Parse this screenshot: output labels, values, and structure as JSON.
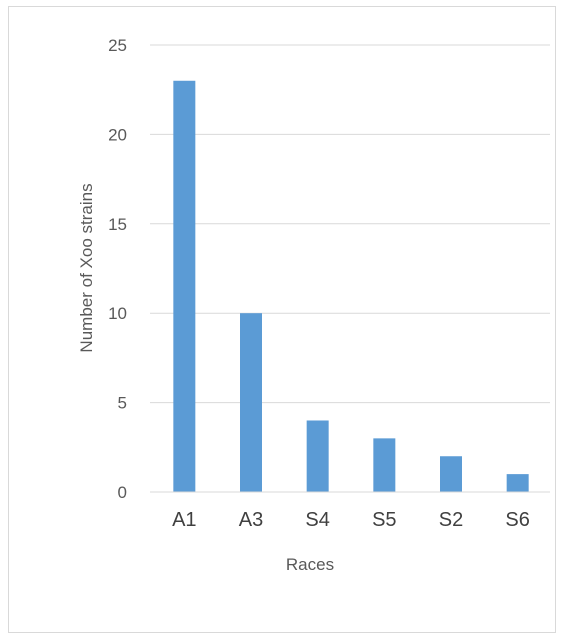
{
  "chart_data": {
    "type": "bar",
    "title": "",
    "xlabel": "Races",
    "ylabel": "Number of Xoo strains",
    "categories": [
      "A1",
      "A3",
      "S4",
      "S5",
      "S2",
      "S6"
    ],
    "values": [
      23,
      10,
      4,
      3,
      2,
      1
    ],
    "yticks": [
      "0",
      "5",
      "10",
      "15",
      "20",
      "25"
    ],
    "ylim": [
      0,
      25
    ],
    "grid": true,
    "legend": "none",
    "bar_color": "#5b9bd5",
    "grid_color": "#d9d9d9"
  }
}
